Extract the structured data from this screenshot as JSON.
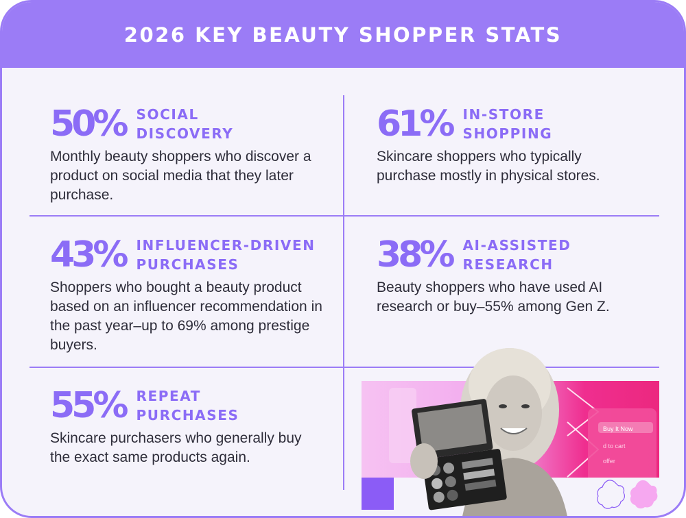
{
  "title": "2026 KEY BEAUTY SHOPPER STATS",
  "stats": [
    {
      "percent": "50%",
      "label_line1": "SOCIAL",
      "label_line2": "DISCOVERY",
      "description": "Monthly beauty shoppers who discover a product on social media that they later purchase."
    },
    {
      "percent": "61%",
      "label_line1": "IN-STORE",
      "label_line2": "SHOPPING",
      "description": "Skincare shoppers who typically purchase mostly in physical stores."
    },
    {
      "percent": "43%",
      "label_line1": "INFLUENCER-DRIVEN",
      "label_line2": "PURCHASES",
      "description": "Shoppers who bought a beauty product based on an influencer recommendation in the past year–up to 69% among prestige buyers."
    },
    {
      "percent": "38%",
      "label_line1": "AI-ASSISTED",
      "label_line2": "RESEARCH",
      "description": "Beauty shoppers who have used AI research or buy–55% among Gen Z."
    },
    {
      "percent": "55%",
      "label_line1": "REPEAT",
      "label_line2": "PURCHASES",
      "description": "Skincare purchasers who generally buy the exact same products again."
    }
  ],
  "image": {
    "phone_button": "Buy It Now",
    "phone_cart": "d to cart",
    "phone_offer": "offer"
  },
  "colors": {
    "accent": "#9b7cf6",
    "stat_purple": "#8b6cf6",
    "background": "#f5f3fb",
    "text": "#2e2d3a",
    "pink": "#ec287f"
  }
}
